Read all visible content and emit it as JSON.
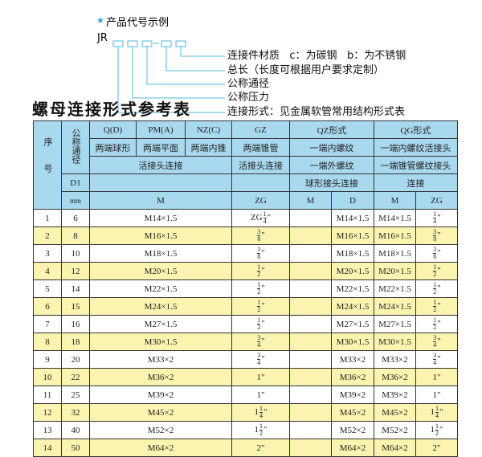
{
  "legend": {
    "heading": "产品代号示例",
    "prefix": "JR",
    "separator": "-",
    "labels": [
      "连接件材质   c：为碳钢   b：为不锈钢",
      "总长（长度可根据用户要求定制）",
      "公称通径",
      "公称压力",
      "连接形式：见金属软管常用结构形式表"
    ],
    "accent": "#2aa7d8"
  },
  "title": "螺母连接形式参考表",
  "table": {
    "h_no": "序号",
    "h_dn": "公称通径",
    "row1": [
      "Q(D)",
      "PM(A)",
      "NZ(C)",
      "GZ",
      "QZ形式",
      "QG形式"
    ],
    "row2": [
      "两端球形",
      "两端平面",
      "两端内锥",
      "两端锥管",
      "一端内螺纹",
      "一端内螺纹活接头"
    ],
    "row3": [
      "活接头连接",
      "活接头连接",
      "一端外螺纹",
      "一端锥管螺纹接头"
    ],
    "row4": [
      "D1",
      "",
      "",
      "球形接头连接",
      "连接"
    ],
    "row5": [
      "mm",
      "M",
      "ZG",
      "M",
      "D",
      "M",
      "ZG"
    ],
    "rows": [
      {
        "no": "1",
        "d1": "6",
        "m": "M14×1.5",
        "zg": {
          "pre": "ZG",
          "w": "",
          "n": "1",
          "d": "4"
        },
        "qzm": "",
        "qzd": "M14×1.5",
        "qgm": "M14×1.5",
        "qgzg": {
          "pre": "",
          "w": "",
          "n": "1",
          "d": "4"
        }
      },
      {
        "no": "2",
        "d1": "8",
        "m": "M16×1.5",
        "zg": {
          "pre": "",
          "w": "",
          "n": "3",
          "d": "8"
        },
        "qzm": "",
        "qzd": "M16×1.5",
        "qgm": "M16×1.5",
        "qgzg": {
          "pre": "",
          "w": "",
          "n": "3",
          "d": "8"
        }
      },
      {
        "no": "3",
        "d1": "10",
        "m": "M18×1.5",
        "zg": {
          "pre": "",
          "w": "",
          "n": "3",
          "d": "8"
        },
        "qzm": "",
        "qzd": "M18×1.5",
        "qgm": "M18×1.5",
        "qgzg": {
          "pre": "",
          "w": "",
          "n": "3",
          "d": "8"
        }
      },
      {
        "no": "4",
        "d1": "12",
        "m": "M20×1.5",
        "zg": {
          "pre": "",
          "w": "",
          "n": "1",
          "d": "2"
        },
        "qzm": "",
        "qzd": "M20×1.5",
        "qgm": "M20×1.5",
        "qgzg": {
          "pre": "",
          "w": "",
          "n": "1",
          "d": "2"
        }
      },
      {
        "no": "5",
        "d1": "14",
        "m": "M22×1.5",
        "zg": {
          "pre": "",
          "w": "",
          "n": "1",
          "d": "2"
        },
        "qzm": "",
        "qzd": "M22×1.5",
        "qgm": "M22×1.5",
        "qgzg": {
          "pre": "",
          "w": "",
          "n": "1",
          "d": "2"
        }
      },
      {
        "no": "6",
        "d1": "15",
        "m": "M24×1.5",
        "zg": {
          "pre": "",
          "w": "",
          "n": "1",
          "d": "2"
        },
        "qzm": "",
        "qzd": "M24×1.5",
        "qgm": "M24×1.5",
        "qgzg": {
          "pre": "",
          "w": "",
          "n": "1",
          "d": "2"
        }
      },
      {
        "no": "7",
        "d1": "16",
        "m": "M27×1.5",
        "zg": {
          "pre": "",
          "w": "",
          "n": "1",
          "d": "2"
        },
        "qzm": "",
        "qzd": "M27×1.5",
        "qgm": "M27×1.5",
        "qgzg": {
          "pre": "",
          "w": "",
          "n": "1",
          "d": "2"
        }
      },
      {
        "no": "8",
        "d1": "18",
        "m": "M30×1.5",
        "zg": {
          "pre": "",
          "w": "",
          "n": "3",
          "d": "4"
        },
        "qzm": "",
        "qzd": "M30×1.5",
        "qgm": "M30×1.5",
        "qgzg": {
          "pre": "",
          "w": "",
          "n": "3",
          "d": "4"
        }
      },
      {
        "no": "9",
        "d1": "20",
        "m": "M33×2",
        "zg": {
          "pre": "",
          "w": "",
          "n": "3",
          "d": "4"
        },
        "qzm": "",
        "qzd": "M33×2",
        "qgm": "M33×2",
        "qgzg": {
          "pre": "",
          "w": "",
          "n": "3",
          "d": "4"
        }
      },
      {
        "no": "10",
        "d1": "22",
        "m": "M36×2",
        "zg": {
          "pre": "",
          "w": "1",
          "n": "",
          "d": ""
        },
        "qzm": "",
        "qzd": "M36×2",
        "qgm": "M36×2",
        "qgzg": {
          "pre": "",
          "w": "1",
          "n": "",
          "d": ""
        }
      },
      {
        "no": "11",
        "d1": "25",
        "m": "M39×2",
        "zg": {
          "pre": "",
          "w": "1",
          "n": "",
          "d": ""
        },
        "qzm": "",
        "qzd": "M39×2",
        "qgm": "M39×2",
        "qgzg": {
          "pre": "",
          "w": "1",
          "n": "",
          "d": ""
        }
      },
      {
        "no": "12",
        "d1": "32",
        "m": "M45×2",
        "zg": {
          "pre": "",
          "w": "1",
          "n": "1",
          "d": "4"
        },
        "qzm": "",
        "qzd": "M45×2",
        "qgm": "M45×2",
        "qgzg": {
          "pre": "",
          "w": "1",
          "n": "1",
          "d": "4"
        }
      },
      {
        "no": "13",
        "d1": "40",
        "m": "M52×2",
        "zg": {
          "pre": "",
          "w": "1",
          "n": "1",
          "d": "2"
        },
        "qzm": "",
        "qzd": "M52×2",
        "qgm": "M52×2",
        "qgzg": {
          "pre": "",
          "w": "1",
          "n": "1",
          "d": "2"
        }
      },
      {
        "no": "14",
        "d1": "50",
        "m": "M64×2",
        "zg": {
          "pre": "",
          "w": "2",
          "n": "",
          "d": ""
        },
        "qzm": "",
        "qzd": "M64×2",
        "qgm": "M64×2",
        "qgzg": {
          "pre": "",
          "w": "2",
          "n": "",
          "d": ""
        }
      }
    ],
    "colors": {
      "header": "#a9d9ef",
      "stripe": "#fbf3b0"
    }
  }
}
